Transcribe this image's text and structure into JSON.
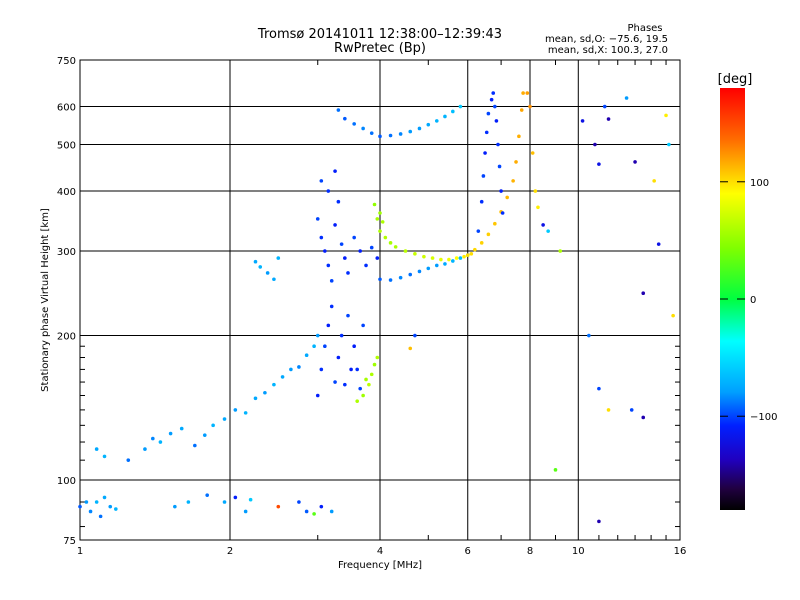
{
  "chart_data": {
    "type": "scatter",
    "title": "Tromsø 20141011 12:38:00–12:39:43",
    "subtitle": "RwPretec (Bp)",
    "xlabel": "Frequency [MHz]",
    "ylabel": "Stationary phase Virtual Height [km]",
    "x_scale": "log",
    "y_scale": "log",
    "xlim": [
      1,
      16
    ],
    "ylim": [
      75,
      750
    ],
    "x_ticks": [
      1,
      2,
      4,
      6,
      8,
      10,
      16
    ],
    "y_ticks": [
      75,
      100,
      200,
      300,
      400,
      500,
      600,
      750
    ],
    "grid": true,
    "legend": {
      "title": "Phases",
      "line1": "mean, sd,O: −75.6, 19.5",
      "line2": "mean, sd,X: 100.3, 27.0",
      "placement": "top-right"
    },
    "colorbar": {
      "label": "[deg]",
      "range": [
        -180,
        180
      ],
      "tick_labels": [
        "100",
        "0",
        "−100"
      ],
      "tick_values": [
        100,
        0,
        -100
      ]
    },
    "series": [
      {
        "name": "",
        "points": [
          [
            1.0,
            88,
            -95
          ],
          [
            1.03,
            90,
            -80
          ],
          [
            1.05,
            86,
            -85
          ],
          [
            1.08,
            90,
            -70
          ],
          [
            1.1,
            84,
            -90
          ],
          [
            1.12,
            92,
            -75
          ],
          [
            1.15,
            88,
            -80
          ],
          [
            1.18,
            87,
            -70
          ],
          [
            1.08,
            116,
            -75
          ],
          [
            1.12,
            112,
            -70
          ],
          [
            1.25,
            110,
            -90
          ],
          [
            1.35,
            116,
            -80
          ],
          [
            1.4,
            122,
            -85
          ],
          [
            1.45,
            120,
            -70
          ],
          [
            1.52,
            125,
            -80
          ],
          [
            1.6,
            128,
            -75
          ],
          [
            1.7,
            118,
            -90
          ],
          [
            1.78,
            124,
            -80
          ],
          [
            1.85,
            130,
            -70
          ],
          [
            1.95,
            134,
            -75
          ],
          [
            2.05,
            140,
            -80
          ],
          [
            2.15,
            138,
            -70
          ],
          [
            2.25,
            148,
            -75
          ],
          [
            2.35,
            152,
            -80
          ],
          [
            2.45,
            158,
            -70
          ],
          [
            2.55,
            164,
            -75
          ],
          [
            2.65,
            170,
            -80
          ],
          [
            2.75,
            172,
            -85
          ],
          [
            2.85,
            182,
            -75
          ],
          [
            2.95,
            190,
            -70
          ],
          [
            3.0,
            200,
            -80
          ],
          [
            1.55,
            88,
            -80
          ],
          [
            1.65,
            90,
            -70
          ],
          [
            1.8,
            93,
            -90
          ],
          [
            1.95,
            90,
            -75
          ],
          [
            2.05,
            92,
            -110
          ],
          [
            2.15,
            86,
            -80
          ],
          [
            2.2,
            91,
            -60
          ],
          [
            2.25,
            285,
            -75
          ],
          [
            2.3,
            278,
            -70
          ],
          [
            2.38,
            270,
            -80
          ],
          [
            2.45,
            262,
            -75
          ],
          [
            2.5,
            290,
            -70
          ],
          [
            3.0,
            350,
            -100
          ],
          [
            3.05,
            320,
            -105
          ],
          [
            3.1,
            300,
            -110
          ],
          [
            3.15,
            280,
            -105
          ],
          [
            3.2,
            260,
            -100
          ],
          [
            3.25,
            340,
            -110
          ],
          [
            3.3,
            380,
            -105
          ],
          [
            3.35,
            310,
            -100
          ],
          [
            3.4,
            290,
            -110
          ],
          [
            3.45,
            270,
            -105
          ],
          [
            3.55,
            320,
            -100
          ],
          [
            3.65,
            300,
            -110
          ],
          [
            3.75,
            280,
            -105
          ],
          [
            3.85,
            305,
            -100
          ],
          [
            3.95,
            290,
            -110
          ],
          [
            3.05,
            420,
            -100
          ],
          [
            3.15,
            400,
            -105
          ],
          [
            3.25,
            440,
            -110
          ],
          [
            3.0,
            150,
            -110
          ],
          [
            3.05,
            170,
            -105
          ],
          [
            3.1,
            190,
            -100
          ],
          [
            3.15,
            210,
            -110
          ],
          [
            3.2,
            230,
            -105
          ],
          [
            3.25,
            160,
            -100
          ],
          [
            3.3,
            180,
            -110
          ],
          [
            3.35,
            200,
            -105
          ],
          [
            3.45,
            220,
            -100
          ],
          [
            3.55,
            190,
            -110
          ],
          [
            3.6,
            170,
            -105
          ],
          [
            3.7,
            210,
            -100
          ],
          [
            3.4,
            158,
            -105
          ],
          [
            3.5,
            170,
            -110
          ],
          [
            3.65,
            155,
            -100
          ],
          [
            3.6,
            146,
            60
          ],
          [
            3.7,
            150,
            55
          ],
          [
            3.8,
            158,
            65
          ],
          [
            3.85,
            166,
            60
          ],
          [
            3.9,
            174,
            55
          ],
          [
            3.95,
            180,
            62
          ],
          [
            3.75,
            162,
            58
          ],
          [
            4.0,
            262,
            -95
          ],
          [
            4.2,
            261,
            -90
          ],
          [
            4.4,
            264,
            -85
          ],
          [
            4.6,
            268,
            -90
          ],
          [
            4.8,
            272,
            -85
          ],
          [
            5.0,
            276,
            -80
          ],
          [
            5.2,
            280,
            -80
          ],
          [
            5.4,
            282,
            -75
          ],
          [
            5.6,
            286,
            -70
          ],
          [
            5.8,
            290,
            -65
          ],
          [
            6.0,
            294,
            -60
          ],
          [
            4.0,
            330,
            60
          ],
          [
            4.1,
            320,
            62
          ],
          [
            4.2,
            312,
            58
          ],
          [
            4.3,
            306,
            60
          ],
          [
            4.5,
            300,
            65
          ],
          [
            4.7,
            296,
            70
          ],
          [
            4.9,
            292,
            72
          ],
          [
            5.1,
            290,
            75
          ],
          [
            5.3,
            288,
            80
          ],
          [
            5.5,
            288,
            85
          ],
          [
            5.7,
            290,
            90
          ],
          [
            5.9,
            292,
            95
          ],
          [
            6.1,
            296,
            100
          ],
          [
            3.9,
            375,
            50
          ],
          [
            4.0,
            360,
            55
          ],
          [
            4.05,
            345,
            60
          ],
          [
            3.95,
            350,
            58
          ],
          [
            6.0,
            294,
            100
          ],
          [
            6.2,
            302,
            102
          ],
          [
            6.4,
            312,
            104
          ],
          [
            6.6,
            325,
            105
          ],
          [
            6.8,
            342,
            108
          ],
          [
            7.0,
            362,
            110
          ],
          [
            7.2,
            388,
            112
          ],
          [
            7.4,
            420,
            114
          ],
          [
            7.5,
            460,
            116
          ],
          [
            7.6,
            520,
            115
          ],
          [
            7.7,
            590,
            118
          ],
          [
            7.75,
            640,
            116
          ],
          [
            6.3,
            330,
            -100
          ],
          [
            6.4,
            380,
            -105
          ],
          [
            6.45,
            430,
            -100
          ],
          [
            6.5,
            480,
            -110
          ],
          [
            6.55,
            530,
            -105
          ],
          [
            6.6,
            580,
            -100
          ],
          [
            6.7,
            620,
            -110
          ],
          [
            6.75,
            640,
            -105
          ],
          [
            6.8,
            600,
            -100
          ],
          [
            6.85,
            560,
            -110
          ],
          [
            6.9,
            500,
            -105
          ],
          [
            6.95,
            450,
            -100
          ],
          [
            7.0,
            400,
            -110
          ],
          [
            7.05,
            360,
            -105
          ],
          [
            4.0,
            520,
            -95
          ],
          [
            4.2,
            522,
            -90
          ],
          [
            4.4,
            526,
            -85
          ],
          [
            4.6,
            532,
            -80
          ],
          [
            4.8,
            540,
            -80
          ],
          [
            5.0,
            550,
            -75
          ],
          [
            5.2,
            560,
            -70
          ],
          [
            5.4,
            572,
            -70
          ],
          [
            5.6,
            586,
            -65
          ],
          [
            5.8,
            600,
            -60
          ],
          [
            3.3,
            590,
            -90
          ],
          [
            3.4,
            566,
            -95
          ],
          [
            3.55,
            552,
            -90
          ],
          [
            3.7,
            540,
            -85
          ],
          [
            3.85,
            528,
            -90
          ],
          [
            2.75,
            90,
            -100
          ],
          [
            2.85,
            86,
            -95
          ],
          [
            2.95,
            85,
            30
          ],
          [
            3.05,
            88,
            -110
          ],
          [
            3.2,
            86,
            -80
          ],
          [
            2.5,
            88,
            150
          ],
          [
            7.9,
            640,
            120
          ],
          [
            8.0,
            600,
            125
          ],
          [
            8.1,
            480,
            110
          ],
          [
            8.2,
            400,
            100
          ],
          [
            8.3,
            370,
            95
          ],
          [
            8.5,
            340,
            -120
          ],
          [
            8.7,
            330,
            -60
          ],
          [
            9.2,
            300,
            60
          ],
          [
            10.2,
            560,
            -120
          ],
          [
            10.8,
            500,
            -140
          ],
          [
            11.0,
            455,
            -120
          ],
          [
            11.3,
            600,
            -100
          ],
          [
            11.5,
            565,
            -140
          ],
          [
            12.5,
            625,
            -80
          ],
          [
            13.0,
            460,
            -140
          ],
          [
            14.2,
            420,
            100
          ],
          [
            14.5,
            310,
            -120
          ],
          [
            15.0,
            575,
            95
          ],
          [
            15.2,
            500,
            -60
          ],
          [
            13.5,
            245,
            -140
          ],
          [
            10.5,
            200,
            -90
          ],
          [
            11.0,
            155,
            -100
          ],
          [
            11.5,
            140,
            100
          ],
          [
            12.8,
            140,
            -100
          ],
          [
            13.5,
            135,
            -140
          ],
          [
            15.5,
            220,
            100
          ],
          [
            11.0,
            82,
            -140
          ],
          [
            9.0,
            105,
            30
          ],
          [
            4.6,
            188,
            110
          ],
          [
            4.7,
            200,
            -100
          ]
        ]
      }
    ]
  }
}
